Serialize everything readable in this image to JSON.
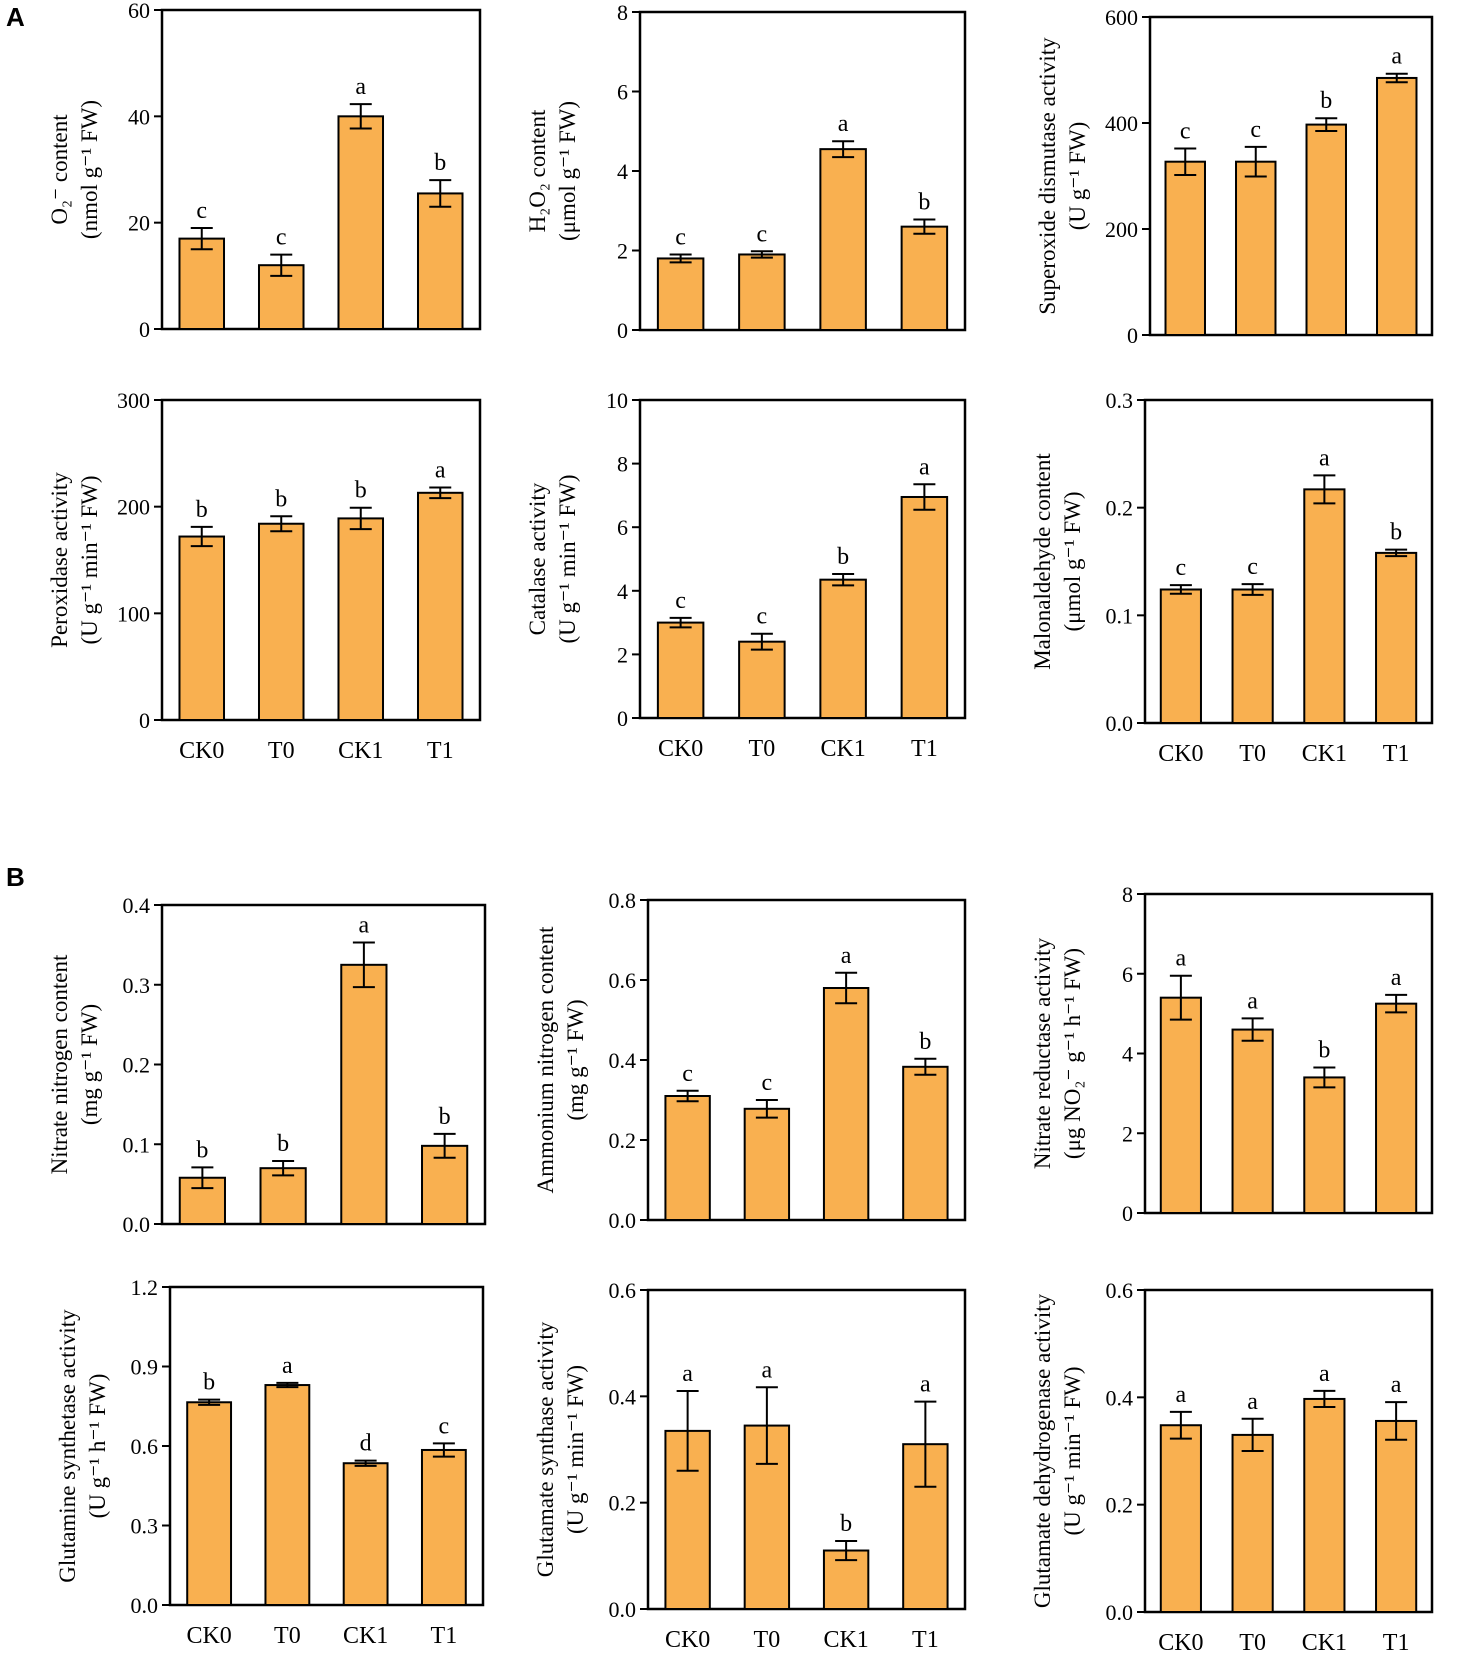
{
  "panel_labels": {
    "a": "A",
    "b": "B"
  },
  "colors": {
    "bar": "#F9B050",
    "stroke": "#000000"
  },
  "chart_data": [
    {
      "type": "bar",
      "title": "",
      "categories": [
        "CK0",
        "T0",
        "CK1",
        "T1"
      ],
      "values": [
        17,
        12,
        40,
        25.5
      ],
      "errors": [
        2,
        2,
        2.3,
        2.5
      ],
      "letters": [
        "c",
        "c",
        "a",
        "b"
      ],
      "ylim": [
        0,
        60
      ],
      "yticks": [
        "0",
        "20",
        "40",
        "60"
      ],
      "ylabel": [
        "O₂⁻ content",
        "(nmol g⁻¹ FW)"
      ],
      "show_xticks": false
    },
    {
      "type": "bar",
      "title": "",
      "categories": [
        "CK0",
        "T0",
        "CK1",
        "T1"
      ],
      "values": [
        1.8,
        1.9,
        4.55,
        2.6
      ],
      "errors": [
        0.1,
        0.08,
        0.2,
        0.18
      ],
      "letters": [
        "c",
        "c",
        "a",
        "b"
      ],
      "ylim": [
        0,
        8
      ],
      "yticks": [
        "0",
        "2",
        "4",
        "6",
        "8"
      ],
      "ylabel": [
        "H₂O₂ content",
        "(μmol g⁻¹ FW)"
      ],
      "show_xticks": false
    },
    {
      "type": "bar",
      "title": "",
      "categories": [
        "CK0",
        "T0",
        "CK1",
        "T1"
      ],
      "values": [
        327,
        327,
        397,
        485
      ],
      "errors": [
        25,
        28,
        12,
        8
      ],
      "letters": [
        "c",
        "c",
        "b",
        "a"
      ],
      "ylim": [
        0,
        600
      ],
      "yticks": [
        "0",
        "200",
        "400",
        "600"
      ],
      "ylabel": [
        "Superoxide dismutase activity",
        "(U g⁻¹ FW)"
      ],
      "show_xticks": false
    },
    {
      "type": "bar",
      "title": "",
      "categories": [
        "CK0",
        "T0",
        "CK1",
        "T1"
      ],
      "values": [
        172,
        184,
        189,
        213
      ],
      "errors": [
        9,
        7,
        10,
        5
      ],
      "letters": [
        "b",
        "b",
        "b",
        "a"
      ],
      "ylim": [
        0,
        300
      ],
      "yticks": [
        "0",
        "100",
        "200",
        "300"
      ],
      "ylabel": [
        "Peroxidase activity",
        "(U g⁻¹ min⁻¹ FW)"
      ],
      "show_xticks": true
    },
    {
      "type": "bar",
      "title": "",
      "categories": [
        "CK0",
        "T0",
        "CK1",
        "T1"
      ],
      "values": [
        3.0,
        2.4,
        4.35,
        6.95
      ],
      "errors": [
        0.15,
        0.25,
        0.18,
        0.4
      ],
      "letters": [
        "c",
        "c",
        "b",
        "a"
      ],
      "ylim": [
        0,
        10
      ],
      "yticks": [
        "0",
        "2",
        "4",
        "6",
        "8",
        "10"
      ],
      "ylabel": [
        "Catalase activity",
        "(U g⁻¹ min⁻¹ FW)"
      ],
      "show_xticks": true
    },
    {
      "type": "bar",
      "title": "",
      "categories": [
        "CK0",
        "T0",
        "CK1",
        "T1"
      ],
      "values": [
        0.124,
        0.124,
        0.217,
        0.158
      ],
      "errors": [
        0.004,
        0.005,
        0.013,
        0.003
      ],
      "letters": [
        "c",
        "c",
        "a",
        "b"
      ],
      "ylim": [
        0,
        0.3
      ],
      "yticks": [
        "0.0",
        "0.1",
        "0.2",
        "0.3"
      ],
      "ylabel": [
        "Malonaldehyde content",
        "(μmol g⁻¹ FW)"
      ],
      "show_xticks": true
    },
    {
      "type": "bar",
      "title": "",
      "categories": [
        "CK0",
        "T0",
        "CK1",
        "T1"
      ],
      "values": [
        0.058,
        0.07,
        0.325,
        0.098
      ],
      "errors": [
        0.013,
        0.009,
        0.028,
        0.015
      ],
      "letters": [
        "b",
        "b",
        "a",
        "b"
      ],
      "ylim": [
        0,
        0.4
      ],
      "yticks": [
        "0.0",
        "0.1",
        "0.2",
        "0.3",
        "0.4"
      ],
      "ylabel": [
        "Nitrate nitrogen content",
        "(mg g⁻¹ FW)"
      ],
      "show_xticks": false
    },
    {
      "type": "bar",
      "title": "",
      "categories": [
        "CK0",
        "T0",
        "CK1",
        "T1"
      ],
      "values": [
        0.31,
        0.278,
        0.58,
        0.383
      ],
      "errors": [
        0.013,
        0.022,
        0.038,
        0.02
      ],
      "letters": [
        "c",
        "c",
        "a",
        "b"
      ],
      "ylim": [
        0,
        0.8
      ],
      "yticks": [
        "0.0",
        "0.2",
        "0.4",
        "0.6",
        "0.8"
      ],
      "ylabel": [
        "Ammonium nitrogen content",
        "(mg g⁻¹ FW)"
      ],
      "show_xticks": false
    },
    {
      "type": "bar",
      "title": "",
      "categories": [
        "CK0",
        "T0",
        "CK1",
        "T1"
      ],
      "values": [
        5.4,
        4.6,
        3.4,
        5.25
      ],
      "errors": [
        0.55,
        0.28,
        0.25,
        0.22
      ],
      "letters": [
        "a",
        "a",
        "b",
        "a"
      ],
      "ylim": [
        0,
        8
      ],
      "yticks": [
        "0",
        "2",
        "4",
        "6",
        "8"
      ],
      "ylabel": [
        "Nitrate reductase activity",
        "(μg NO₂⁻ g⁻¹ h⁻¹ FW)"
      ],
      "show_xticks": false
    },
    {
      "type": "bar",
      "title": "",
      "categories": [
        "CK0",
        "T0",
        "CK1",
        "T1"
      ],
      "values": [
        0.765,
        0.83,
        0.535,
        0.585
      ],
      "errors": [
        0.01,
        0.008,
        0.01,
        0.025
      ],
      "letters": [
        "b",
        "a",
        "d",
        "c"
      ],
      "ylim": [
        0,
        1.2
      ],
      "yticks": [
        "0.0",
        "0.3",
        "0.6",
        "0.9",
        "1.2"
      ],
      "ylabel": [
        "Glutamine synthetase activity",
        "(U g⁻¹ h⁻¹ FW)"
      ],
      "show_xticks": true
    },
    {
      "type": "bar",
      "title": "",
      "categories": [
        "CK0",
        "T0",
        "CK1",
        "T1"
      ],
      "values": [
        0.335,
        0.345,
        0.11,
        0.31
      ],
      "errors": [
        0.075,
        0.072,
        0.018,
        0.08
      ],
      "letters": [
        "a",
        "a",
        "b",
        "a"
      ],
      "ylim": [
        0,
        0.6
      ],
      "yticks": [
        "0.0",
        "0.2",
        "0.4",
        "0.6"
      ],
      "ylabel": [
        "Glutamate synthase activity",
        "(U g⁻¹ min⁻¹ FW)"
      ],
      "show_xticks": true
    },
    {
      "type": "bar",
      "title": "",
      "categories": [
        "CK0",
        "T0",
        "CK1",
        "T1"
      ],
      "values": [
        0.348,
        0.33,
        0.397,
        0.356
      ],
      "errors": [
        0.025,
        0.03,
        0.015,
        0.035
      ],
      "letters": [
        "a",
        "a",
        "a",
        "a"
      ],
      "ylim": [
        0,
        0.6
      ],
      "yticks": [
        "0.0",
        "0.2",
        "0.4",
        "0.6"
      ],
      "ylabel": [
        "Glutamate dehydrogenase activity",
        "(U g⁻¹ min⁻¹ FW)"
      ],
      "show_xticks": true
    }
  ]
}
